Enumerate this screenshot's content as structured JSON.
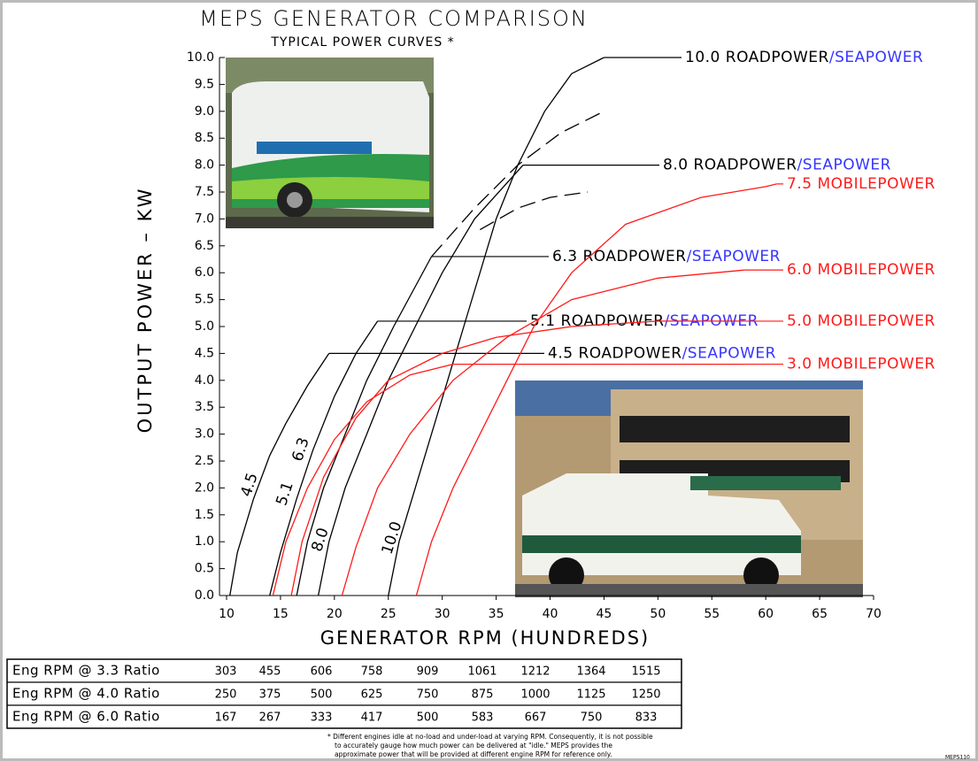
{
  "chart_data": {
    "type": "line",
    "title": "MEPS GENERATOR COMPARISON",
    "subtitle": "TYPICAL POWER CURVES *",
    "x_label": "GENERATOR RPM (HUNDREDS)",
    "y_label": "OUTPUT POWER – KW",
    "xlim": [
      10,
      70
    ],
    "xticks": [
      10,
      15,
      20,
      25,
      30,
      35,
      40,
      45,
      50,
      55,
      60,
      65,
      70
    ],
    "ylim": [
      0,
      10
    ],
    "yticks": [
      {
        "value": 0,
        "label": "0.0"
      },
      0.5,
      {
        "value": 1,
        "label": "1.0"
      },
      1.5,
      {
        "value": 2,
        "label": "2.0"
      },
      2.5,
      {
        "value": 3,
        "label": "3.0"
      },
      3.5,
      {
        "value": 4,
        "label": "4.0"
      },
      4.5,
      {
        "value": 5,
        "label": "5.0"
      },
      5.5,
      {
        "value": 6,
        "label": "6.0"
      },
      6.5,
      {
        "value": 7,
        "label": "7.0"
      },
      7.5,
      {
        "value": 8,
        "label": "8.0"
      },
      8.5,
      {
        "value": 9,
        "label": "9.0"
      },
      9.5,
      {
        "value": 10,
        "label": "10.0"
      }
    ],
    "grid": false,
    "suffix_color": "#3535ff",
    "series": [
      {
        "name": "4.5 ROADPOWER",
        "name_suffix": "/SEAPOWER",
        "curve_label": "4.5",
        "color": "#000000",
        "x": [
          10.3,
          11,
          12.5,
          14,
          15.5,
          17.5,
          19.5
        ],
        "values": [
          0,
          0.8,
          1.8,
          2.6,
          3.2,
          3.9,
          4.5
        ]
      },
      {
        "name": "5.1 ROADPOWER",
        "name_suffix": "/SEAPOWER",
        "curve_label": "5.1",
        "color": "#000000",
        "x": [
          14,
          15,
          16.5,
          18,
          20,
          22,
          24
        ],
        "values": [
          0,
          0.8,
          1.8,
          2.7,
          3.7,
          4.5,
          5.1
        ]
      },
      {
        "name": "6.3 ROADPOWER",
        "name_suffix": "/SEAPOWER",
        "curve_label": "6.3",
        "color": "#000000",
        "x": [
          16.5,
          17.5,
          19,
          21,
          23,
          25.5,
          29
        ],
        "values": [
          0,
          1,
          2,
          3,
          4,
          5,
          6.3
        ],
        "extension": {
          "x": [
            29,
            33,
            37,
            41,
            45
          ],
          "values": [
            6.3,
            7.2,
            8,
            8.6,
            9
          ]
        }
      },
      {
        "name": "8.0 ROADPOWER",
        "name_suffix": "/SEAPOWER",
        "curve_label": "8.0",
        "color": "#000000",
        "x": [
          18.5,
          19.5,
          21,
          23,
          25,
          27.5,
          30,
          33,
          37.5
        ],
        "values": [
          0,
          1,
          2,
          3,
          4,
          5,
          6,
          7,
          8
        ],
        "extension": {
          "x": [
            33.5,
            37,
            40,
            43.5
          ],
          "values": [
            6.8,
            7.2,
            7.4,
            7.5
          ]
        }
      },
      {
        "name": "10.0 ROADPOWER",
        "name_suffix": "/SEAPOWER",
        "curve_label": "10.0",
        "color": "#000000",
        "x": [
          25,
          26,
          27.5,
          29,
          30.5,
          32,
          33.5,
          35,
          37,
          39.5,
          42,
          45
        ],
        "values": [
          0,
          1,
          2,
          3,
          4,
          5,
          6,
          7,
          8,
          9,
          9.7,
          10
        ]
      },
      {
        "name": "3.0 MOBILEPOWER",
        "color": "#ff1a1a",
        "x": [
          14.3,
          15.5,
          17.5,
          20,
          23,
          27,
          31,
          58
        ],
        "values": [
          0,
          1,
          2,
          2.9,
          3.6,
          4.1,
          4.3,
          4.3
        ]
      },
      {
        "name": "5.0 MOBILEPOWER",
        "color": "#ff1a1a",
        "x": [
          16,
          17,
          19,
          22,
          25,
          30,
          35,
          42,
          50,
          58
        ],
        "values": [
          0,
          1,
          2.2,
          3.3,
          4,
          4.5,
          4.8,
          5,
          5.1,
          5.1
        ]
      },
      {
        "name": "6.0 MOBILEPOWER",
        "color": "#ff1a1a",
        "x": [
          20.7,
          22,
          24,
          27,
          31,
          36,
          42,
          50,
          58
        ],
        "values": [
          0,
          0.9,
          2,
          3,
          4,
          4.8,
          5.5,
          5.9,
          6.05
        ]
      },
      {
        "name": "7.5 MOBILEPOWER",
        "color": "#ff1a1a",
        "x": [
          27.6,
          29,
          31,
          33.5,
          36,
          38.5,
          42,
          47,
          54,
          60,
          61
        ],
        "values": [
          0,
          1,
          2,
          3,
          4,
          5,
          6,
          6.9,
          7.4,
          7.6,
          7.65
        ]
      }
    ]
  },
  "table": {
    "rows": [
      [
        "Eng RPM @ 3.3 Ratio",
        303,
        455,
        606,
        758,
        909,
        1061,
        1212,
        1364,
        1515
      ],
      [
        "Eng RPM @ 4.0 Ratio",
        250,
        375,
        500,
        625,
        750,
        875,
        1000,
        1125,
        1250
      ],
      [
        "Eng RPM @ 6.0 Ratio",
        167,
        267,
        333,
        417,
        500,
        583,
        667,
        750,
        833
      ]
    ]
  },
  "footnote": [
    "* Different engines idle at no-load and under-load at varying RPM. Consequently, it is not possible",
    "to accurately gauge how much power can be delivered at \"idle.\" MEPS provides the",
    "approximate power that will be provided at different engine RPM for reference only."
  ],
  "doc_id": "MEPS110"
}
